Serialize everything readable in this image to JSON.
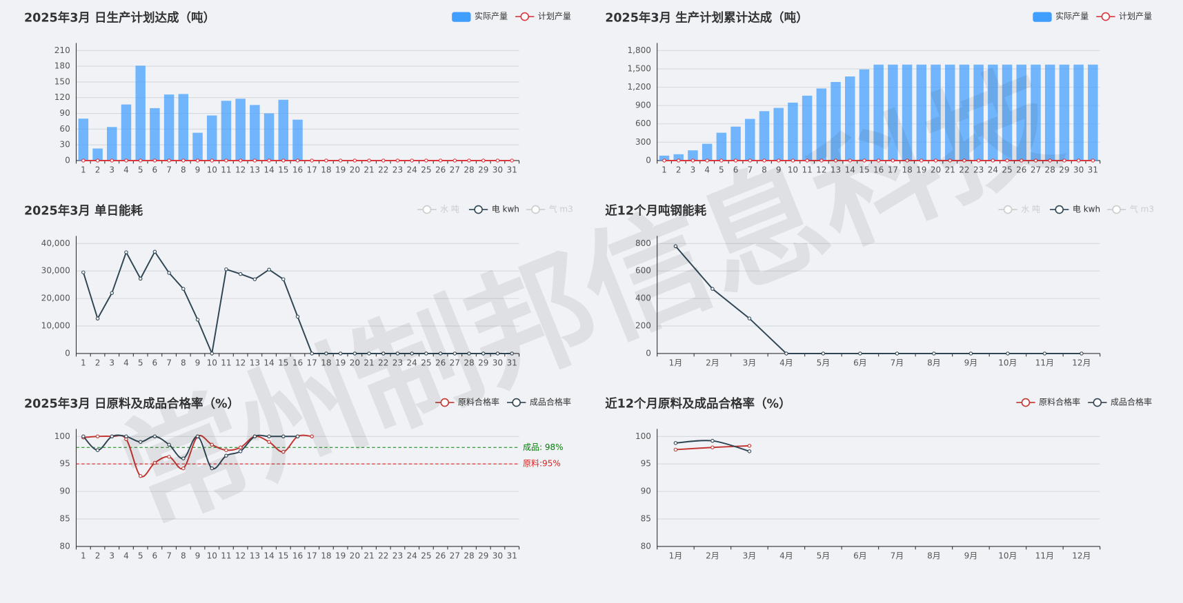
{
  "watermark": "常州制邦信息科技",
  "chart_data": [
    {
      "type": "bar",
      "title": "2025年3月 日生产计划达成（吨）",
      "categories": [
        "1",
        "2",
        "3",
        "4",
        "5",
        "6",
        "7",
        "8",
        "9",
        "10",
        "11",
        "12",
        "13",
        "14",
        "15",
        "16",
        "17",
        "18",
        "19",
        "20",
        "21",
        "22",
        "23",
        "24",
        "25",
        "26",
        "27",
        "28",
        "29",
        "30",
        "31"
      ],
      "series": [
        {
          "name": "实际产量",
          "type": "bar",
          "color": "#409eff",
          "values": [
            80,
            23,
            64,
            107,
            181,
            100,
            126,
            127,
            53,
            86,
            114,
            118,
            106,
            90,
            116,
            78,
            0,
            0,
            0,
            0,
            0,
            0,
            0,
            0,
            0,
            0,
            0,
            0,
            0,
            0,
            0
          ]
        },
        {
          "name": "计划产量",
          "type": "line",
          "color": "#d9363e",
          "values": [
            0,
            0,
            0,
            0,
            0,
            0,
            0,
            0,
            0,
            0,
            0,
            0,
            0,
            0,
            0,
            0,
            0,
            0,
            0,
            0,
            0,
            0,
            0,
            0,
            0,
            0,
            0,
            0,
            0,
            0,
            0
          ]
        }
      ],
      "ylim": [
        0,
        210
      ],
      "yticks": [
        0,
        30,
        60,
        90,
        120,
        150,
        180,
        210
      ],
      "grid": true
    },
    {
      "type": "bar",
      "title": "2025年3月 生产计划累计达成（吨）",
      "categories": [
        "1",
        "2",
        "3",
        "4",
        "5",
        "6",
        "7",
        "8",
        "9",
        "10",
        "11",
        "12",
        "13",
        "14",
        "15",
        "16",
        "17",
        "18",
        "19",
        "20",
        "21",
        "22",
        "23",
        "24",
        "25",
        "26",
        "27",
        "28",
        "29",
        "30",
        "31"
      ],
      "series": [
        {
          "name": "实际产量",
          "type": "bar",
          "color": "#409eff",
          "values": [
            80,
            103,
            167,
            274,
            455,
            555,
            681,
            808,
            861,
            947,
            1061,
            1179,
            1285,
            1375,
            1491,
            1569,
            1569,
            1569,
            1569,
            1569,
            1569,
            1569,
            1569,
            1569,
            1569,
            1569,
            1569,
            1569,
            1569,
            1569,
            1569
          ]
        },
        {
          "name": "计划产量",
          "type": "line",
          "color": "#d9363e",
          "values": [
            0,
            0,
            0,
            0,
            0,
            0,
            0,
            0,
            0,
            0,
            0,
            0,
            0,
            0,
            0,
            0,
            0,
            0,
            0,
            0,
            0,
            0,
            0,
            0,
            0,
            0,
            0,
            0,
            0,
            0,
            0
          ]
        }
      ],
      "ylim": [
        0,
        1800
      ],
      "yticks": [
        0,
        300,
        600,
        900,
        {
          "value": 1200,
          "label": "1,200"
        },
        {
          "value": 1500,
          "label": "1,500"
        },
        {
          "value": 1800,
          "label": "1,800"
        }
      ],
      "grid": true
    },
    {
      "type": "line",
      "title": "2025年3月 单日能耗",
      "categories": [
        "1",
        "2",
        "3",
        "4",
        "5",
        "6",
        "7",
        "8",
        "9",
        "10",
        "11",
        "12",
        "13",
        "14",
        "15",
        "16",
        "17",
        "18",
        "19",
        "20",
        "21",
        "22",
        "23",
        "24",
        "25",
        "26",
        "27",
        "28",
        "29",
        "30",
        "31"
      ],
      "legend": [
        {
          "name": "水 吨",
          "active": false
        },
        {
          "name": "电 kwh",
          "active": true
        },
        {
          "name": "气 m3",
          "active": false
        }
      ],
      "series": [
        {
          "name": "电 kwh",
          "type": "line",
          "color": "#2f4554",
          "values": [
            29500,
            12700,
            22000,
            36800,
            27200,
            37000,
            29300,
            23500,
            12300,
            0,
            30600,
            28900,
            27000,
            30500,
            27000,
            13400,
            0,
            0,
            0,
            0,
            0,
            0,
            0,
            0,
            0,
            0,
            0,
            0,
            0,
            0,
            0
          ]
        }
      ],
      "ylim": [
        0,
        40000
      ],
      "yticks": [
        0,
        {
          "value": 10000,
          "label": "10,000"
        },
        {
          "value": 20000,
          "label": "20,000"
        },
        {
          "value": 30000,
          "label": "30,000"
        },
        {
          "value": 40000,
          "label": "40,000"
        }
      ],
      "grid": true
    },
    {
      "type": "line",
      "title": "近12个月吨钢能耗",
      "categories": [
        "1月",
        "2月",
        "3月",
        "4月",
        "5月",
        "6月",
        "7月",
        "8月",
        "9月",
        "10月",
        "11月",
        "12月"
      ],
      "legend": [
        {
          "name": "水 吨",
          "active": false
        },
        {
          "name": "电 kwh",
          "active": true
        },
        {
          "name": "气 m3",
          "active": false
        }
      ],
      "series": [
        {
          "name": "电 kwh",
          "type": "line",
          "color": "#2f4554",
          "values": [
            780,
            470,
            255,
            0,
            0,
            0,
            0,
            0,
            0,
            0,
            0,
            0
          ]
        }
      ],
      "ylim": [
        0,
        800
      ],
      "yticks": [
        0,
        200,
        400,
        600,
        800
      ],
      "grid": true
    },
    {
      "type": "line",
      "title": "2025年3月 日原料及成品合格率（%）",
      "smooth": true,
      "categories": [
        "1",
        "2",
        "3",
        "4",
        "5",
        "6",
        "7",
        "8",
        "9",
        "10",
        "11",
        "12",
        "13",
        "14",
        "15",
        "16",
        "17",
        "18",
        "19",
        "20",
        "21",
        "22",
        "23",
        "24",
        "25",
        "26",
        "27",
        "28",
        "29",
        "30",
        "31"
      ],
      "series": [
        {
          "name": "原料合格率",
          "type": "line",
          "color": "#c23531",
          "values": [
            99.8,
            100,
            100,
            99.5,
            92.8,
            95.2,
            96.3,
            94.2,
            100,
            98.5,
            97.5,
            98,
            100,
            99,
            97.2,
            100,
            100,
            null,
            null,
            null,
            null,
            null,
            null,
            null,
            null,
            null,
            null,
            null,
            null,
            null,
            null
          ]
        },
        {
          "name": "成品合格率",
          "type": "line",
          "color": "#2f4554",
          "values": [
            100,
            97.5,
            100,
            100,
            99,
            100,
            98.5,
            96,
            100,
            94.2,
            96.5,
            97.3,
            100,
            100,
            100,
            100,
            null,
            null,
            null,
            null,
            null,
            null,
            null,
            null,
            null,
            null,
            null,
            null,
            null,
            null,
            null
          ]
        }
      ],
      "mark_lines": [
        {
          "value": 98,
          "label": "成品: 98%",
          "color": "#008000"
        },
        {
          "value": 95,
          "label": "原料:95%",
          "color": "#e02020"
        }
      ],
      "ylim": [
        80,
        100
      ],
      "yticks": [
        80,
        85,
        90,
        95,
        100
      ],
      "grid": true
    },
    {
      "type": "line",
      "title": "近12个月原料及成品合格率（%）",
      "smooth": true,
      "categories": [
        "1月",
        "2月",
        "3月",
        "4月",
        "5月",
        "6月",
        "7月",
        "8月",
        "9月",
        "10月",
        "11月",
        "12月"
      ],
      "series": [
        {
          "name": "原料合格率",
          "type": "line",
          "color": "#c23531",
          "values": [
            97.6,
            98,
            98.3,
            null,
            null,
            null,
            null,
            null,
            null,
            null,
            null,
            null
          ]
        },
        {
          "name": "成品合格率",
          "type": "line",
          "color": "#2f4554",
          "values": [
            98.8,
            99.2,
            97.3,
            null,
            null,
            null,
            null,
            null,
            null,
            null,
            null,
            null
          ]
        }
      ],
      "ylim": [
        80,
        100
      ],
      "yticks": [
        80,
        85,
        90,
        95,
        100
      ],
      "grid": true
    }
  ]
}
